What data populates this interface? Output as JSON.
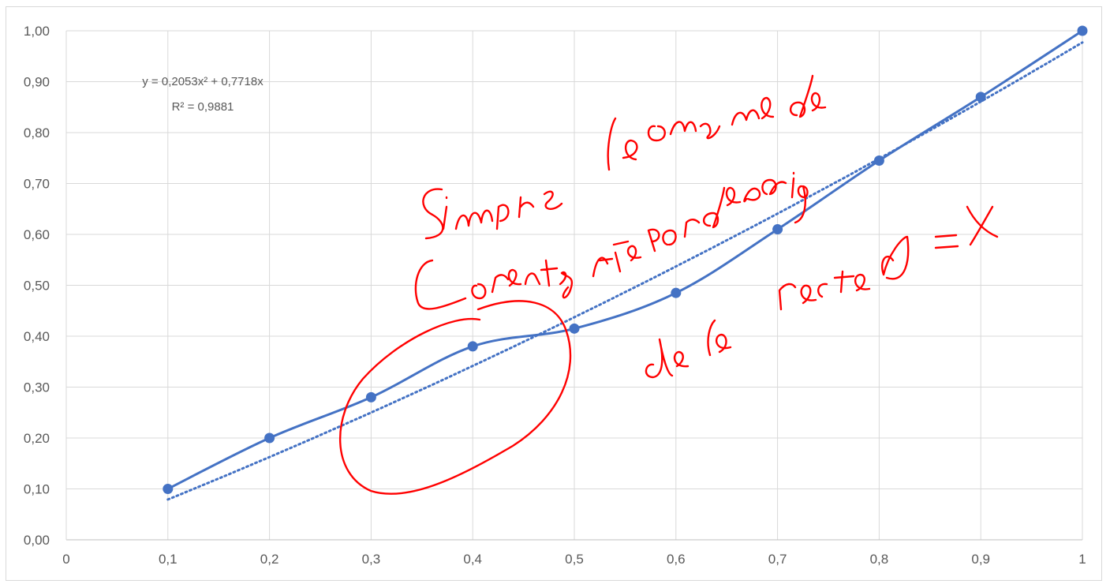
{
  "chart_data": {
    "type": "line",
    "x": [
      0.1,
      0.2,
      0.3,
      0.4,
      0.5,
      0.6,
      0.7,
      0.8,
      0.9,
      1.0
    ],
    "series": [
      {
        "values": [
          0.1,
          0.2,
          0.28,
          0.38,
          0.415,
          0.485,
          0.61,
          0.745,
          0.87,
          1.0
        ],
        "color": "#4472C4",
        "style": "smooth line with circle markers"
      }
    ],
    "trendline": {
      "type": "polynomial",
      "coefficients": {
        "a": 0.2053,
        "b": 0.7718,
        "c": 0
      },
      "color": "#4472C4",
      "style": "dotted",
      "equation_lines": [
        "y = 0,2053x² + 0,7718x",
        "R² = 0,9881"
      ]
    },
    "xlim": [
      0,
      1
    ],
    "ylim": [
      0,
      1
    ],
    "x_ticks": [
      "0",
      "0,1",
      "0,2",
      "0,3",
      "0,4",
      "0,5",
      "0,6",
      "0,7",
      "0,8",
      "0,9",
      "1"
    ],
    "y_ticks": [
      "0,00",
      "0,10",
      "0,20",
      "0,30",
      "0,40",
      "0,50",
      "0,60",
      "0,70",
      "0,80",
      "0,90",
      "1,00"
    ],
    "grid": true,
    "annotations": {
      "handwritten_note": [
        "Siempre la curva de",
        "Lorentz está por debajo",
        "de la recta y = x"
      ],
      "color": "#ff0000",
      "circled_region": "around points 0,3–0,5"
    }
  }
}
